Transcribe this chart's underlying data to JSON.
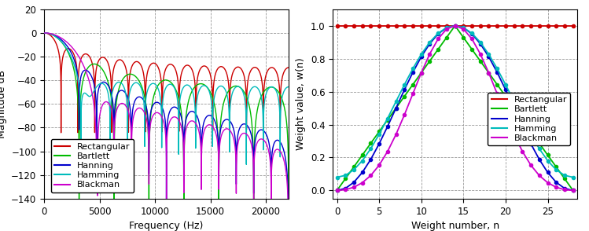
{
  "freq_xlabel": "Frequency (Hz)",
  "freq_ylabel": "Magnitude dB",
  "weight_xlabel": "Weight number, n",
  "weight_ylabel": "Weight value, w(n)",
  "freq_ylim": [
    -140,
    20
  ],
  "freq_xlim": [
    0,
    22050
  ],
  "freq_yticks": [
    20,
    0,
    -20,
    -40,
    -60,
    -80,
    -100,
    -120,
    -140
  ],
  "freq_xticks": [
    0,
    5000,
    10000,
    15000,
    20000
  ],
  "weight_ylim": [
    -0.05,
    1.1
  ],
  "weight_xlim": [
    -0.5,
    28.5
  ],
  "weight_yticks": [
    0,
    0.2,
    0.4,
    0.6,
    0.8,
    1.0
  ],
  "weight_xticks": [
    0,
    5,
    10,
    15,
    20,
    25
  ],
  "N": 29,
  "fs": 44100,
  "colors": {
    "Rectangular": "#cc0000",
    "Bartlett": "#00bb00",
    "Hanning": "#0000cc",
    "Hamming": "#00bbbb",
    "Blackman": "#cc00cc"
  },
  "legend_order": [
    "Rectangular",
    "Bartlett",
    "Hanning",
    "Hamming",
    "Blackman"
  ],
  "background_color": "#ffffff",
  "grid_color": "#999999",
  "grid_linestyle": "--"
}
